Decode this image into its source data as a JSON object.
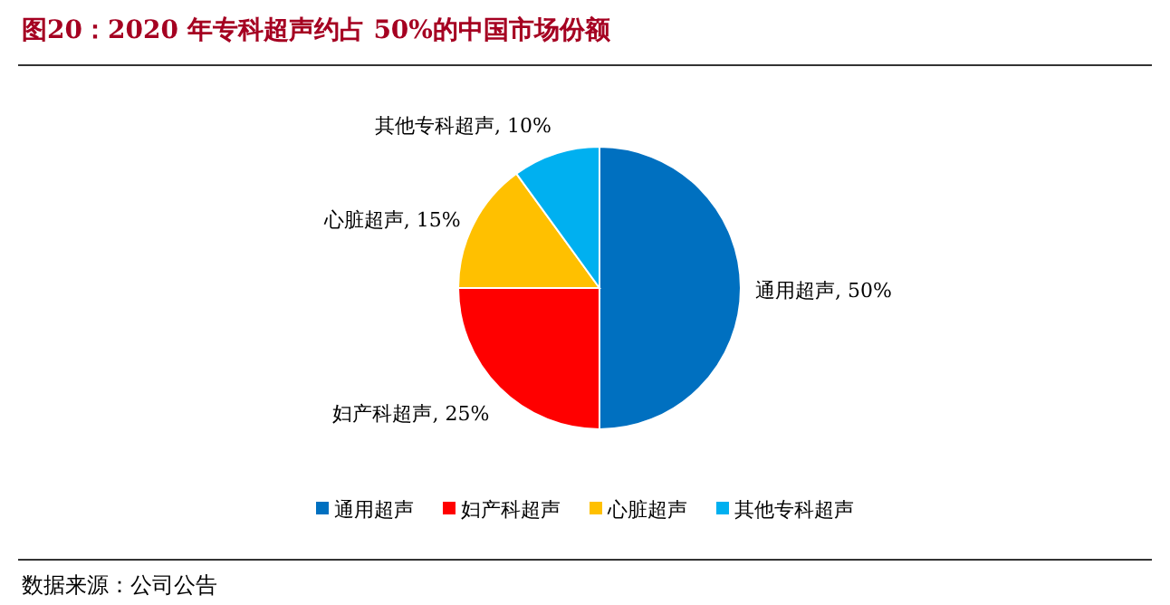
{
  "chart_data": {
    "type": "pie",
    "title": "图20：2020 年专科超声约占 50%的中国市场份额",
    "categories": [
      "通用超声",
      "妇产科超声",
      "心脏超声",
      "其他专科超声"
    ],
    "values": [
      50,
      25,
      15,
      10
    ],
    "value_labels": [
      "通用超声, 50%",
      "妇产科超声, 25%",
      "心脏超声, 15%",
      "其他专科超声, 10%"
    ],
    "colors": [
      "#0070c0",
      "#ff0000",
      "#ffc000",
      "#00b0f0"
    ],
    "legend": "bottom",
    "annotations": [
      "数据来源：公司公告"
    ]
  }
}
